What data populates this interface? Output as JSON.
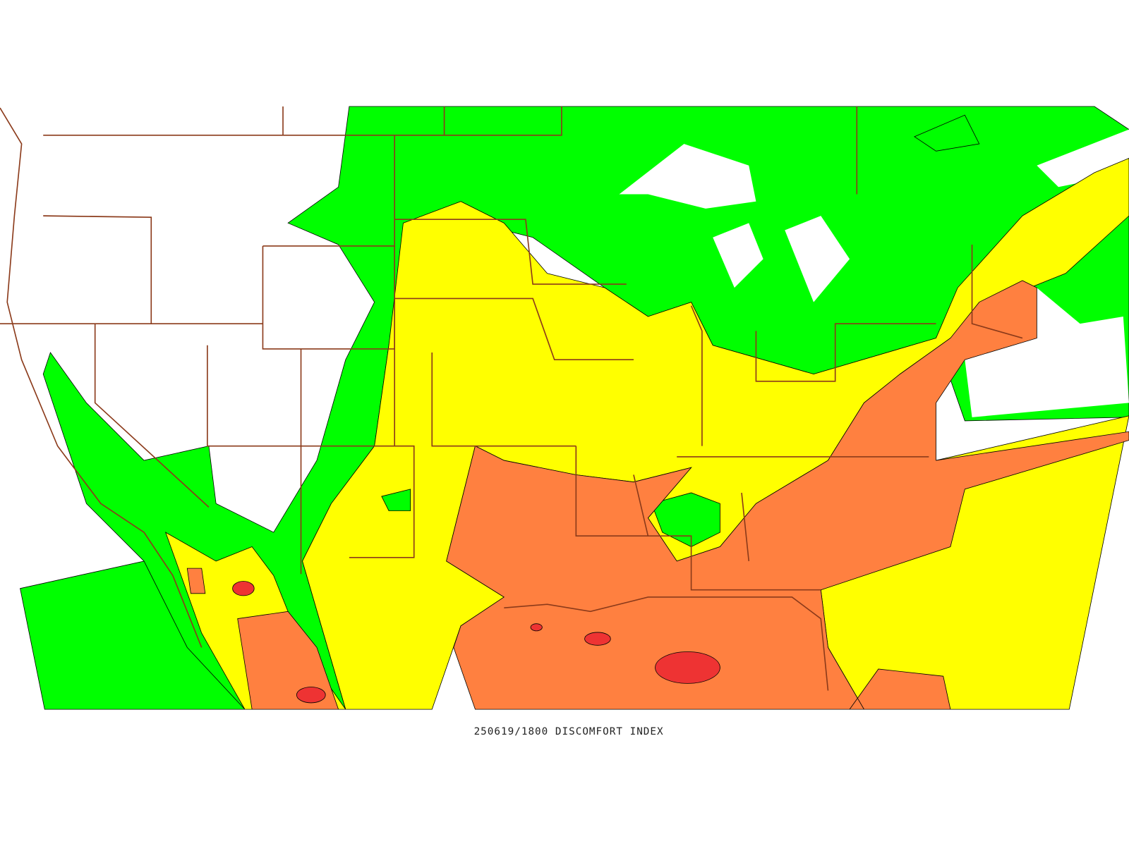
{
  "map": {
    "caption": "250619/1800 DISCOMFORT INDEX"
  }
}
